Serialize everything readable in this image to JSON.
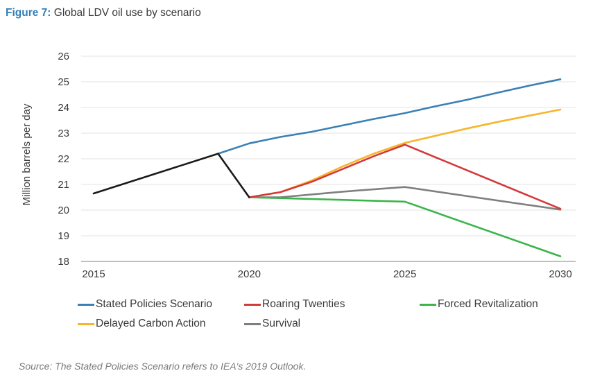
{
  "figure": {
    "label": "Figure 7:",
    "title": "Global LDV oil use by scenario"
  },
  "source": "Source: The Stated Policies Scenario refers to IEA's 2019 Outlook.",
  "chart_data": {
    "type": "line",
    "title": "Global LDV oil use by scenario",
    "xlabel": "",
    "ylabel": "Million barrels per day",
    "xlim": [
      2015,
      2030
    ],
    "ylim": [
      18,
      26
    ],
    "xticks": [
      2015,
      2020,
      2025,
      2030
    ],
    "yticks": [
      18,
      19,
      20,
      21,
      22,
      23,
      24,
      25,
      26
    ],
    "grid": "horizontal",
    "legend_position": "bottom",
    "series": [
      {
        "name": "Historical",
        "color": "#1a1a1a",
        "in_legend": false,
        "x": [
          2015,
          2019,
          2020
        ],
        "y": [
          20.65,
          22.2,
          20.5
        ]
      },
      {
        "name": "Stated Policies Scenario",
        "color": "#3a80b5",
        "in_legend": true,
        "x": [
          2019,
          2020,
          2021,
          2022,
          2023,
          2024,
          2025,
          2026,
          2027,
          2028,
          2029,
          2030
        ],
        "y": [
          22.2,
          22.6,
          22.85,
          23.05,
          23.3,
          23.55,
          23.78,
          24.05,
          24.3,
          24.58,
          24.85,
          25.1
        ]
      },
      {
        "name": "Roaring Twenties",
        "color": "#d33a3a",
        "in_legend": true,
        "x": [
          2020,
          2021,
          2022,
          2023,
          2024,
          2025,
          2030
        ],
        "y": [
          20.5,
          20.7,
          21.1,
          21.6,
          22.1,
          22.55,
          20.05
        ]
      },
      {
        "name": "Forced Revitalization",
        "color": "#3bb54a",
        "in_legend": true,
        "x": [
          2020,
          2025,
          2030
        ],
        "y": [
          20.5,
          20.33,
          18.2
        ]
      },
      {
        "name": "Delayed Carbon Action",
        "color": "#f7b52b",
        "in_legend": true,
        "x": [
          2020,
          2021,
          2022,
          2023,
          2024,
          2025,
          2026,
          2027,
          2028,
          2029,
          2030
        ],
        "y": [
          20.5,
          20.7,
          21.15,
          21.7,
          22.2,
          22.62,
          22.9,
          23.18,
          23.44,
          23.68,
          23.92
        ]
      },
      {
        "name": "Survival",
        "color": "#7f7f7f",
        "in_legend": true,
        "x": [
          2020,
          2021,
          2023,
          2025,
          2030
        ],
        "y": [
          20.5,
          20.5,
          20.72,
          20.9,
          20.02
        ]
      }
    ]
  }
}
